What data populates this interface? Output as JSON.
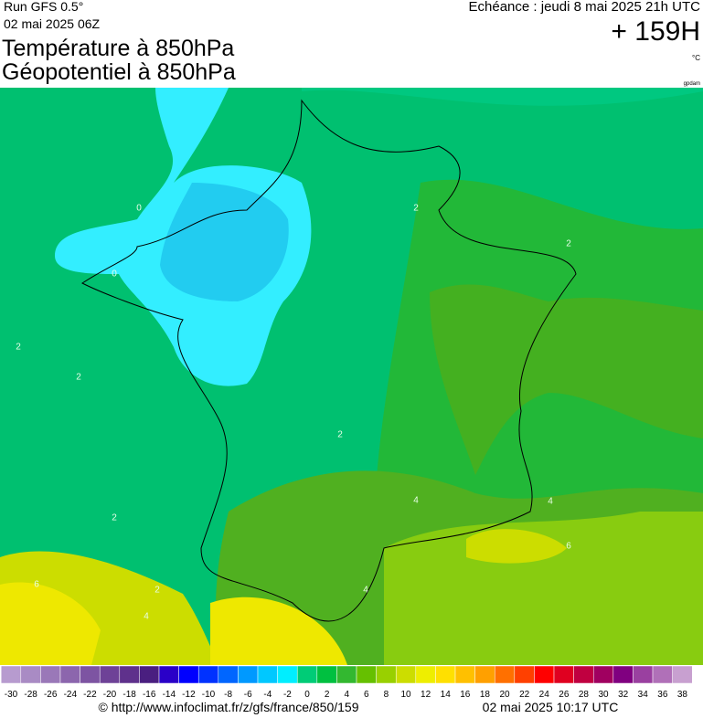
{
  "header": {
    "run": "Run GFS 0.5°",
    "run_date": "02 mai 2025 06Z",
    "title_line1": "Température à 850hPa",
    "title_line2": "Géopotentiel à 850hPa",
    "echeance": "Echéance : jeudi 8 mai 2025 21h UTC",
    "lead_time": "+ 159H",
    "unit": "°C",
    "credit": "gpdam"
  },
  "contour_labels": [
    "0",
    "0",
    "2",
    "2",
    "2",
    "2",
    "2",
    "2",
    "2",
    "4",
    "4",
    "4",
    "4",
    "6",
    "6"
  ],
  "colorbar": {
    "ticks": [
      -30,
      -28,
      -26,
      -24,
      -22,
      -20,
      -18,
      -16,
      -14,
      -12,
      -10,
      -8,
      -6,
      -4,
      -2,
      0,
      2,
      4,
      6,
      8,
      10,
      12,
      14,
      16,
      18,
      20,
      22,
      24,
      26,
      28,
      30,
      32,
      34,
      36,
      38
    ],
    "colors": [
      "#b79bcf",
      "#a98bc4",
      "#9a78b8",
      "#8c66ad",
      "#7d54a2",
      "#6e4297",
      "#5f318c",
      "#4a1f80",
      "#2a00c8",
      "#0000ff",
      "#0032ff",
      "#0066ff",
      "#0099ff",
      "#00c8ff",
      "#00eeff",
      "#00cc77",
      "#00c040",
      "#33b830",
      "#66c000",
      "#99d000",
      "#ccdd00",
      "#eeee00",
      "#ffe000",
      "#ffc000",
      "#ffa000",
      "#ff7000",
      "#ff4000",
      "#ff0000",
      "#e00020",
      "#c00040",
      "#a00060",
      "#800080",
      "#9a40a0",
      "#b070b8",
      "#c8a0d0"
    ]
  },
  "footer": {
    "url": "© http://www.infoclimat.fr/z/gfs/france/850/159",
    "timestamp": "02 mai 2025 10:17 UTC"
  }
}
